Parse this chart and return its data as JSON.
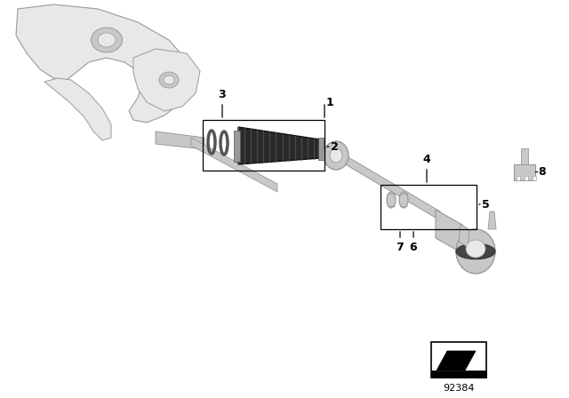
{
  "bg_color": "#ffffff",
  "fig_width": 6.4,
  "fig_height": 4.48,
  "dpi": 100,
  "diagram_id": "92384",
  "light_gray": "#c8c8c8",
  "xlight_gray": "#e8e8e8",
  "med_gray": "#999999",
  "dark_gray": "#555555",
  "black": "#000000",
  "white": "#ffffff",
  "boot_dark": "#2a2a2a",
  "boot_rib": "#555555"
}
